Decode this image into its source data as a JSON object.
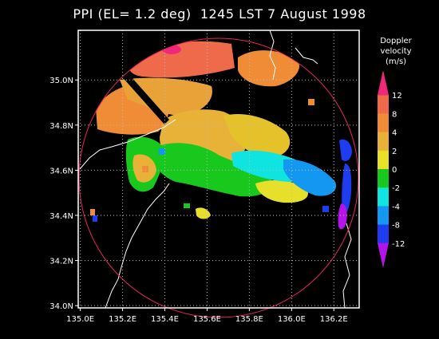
{
  "title": "PPI (EL= 1.2 deg)  1245 LST 7 August 1998",
  "colorbar": {
    "label_line1": "Doppler",
    "label_line2": "velocity",
    "label_line3": "(m/s)",
    "levels": [
      "12",
      "8",
      "4",
      "2",
      "0",
      "-2",
      "-4",
      "-8",
      "-12"
    ],
    "colors": [
      "#f0287a",
      "#ee6a4a",
      "#f18c36",
      "#e8b238",
      "#e6e02a",
      "#19c81c",
      "#10e4e0",
      "#1298f0",
      "#1e3cf0",
      "#b414ea"
    ]
  },
  "chart_data": {
    "type": "heatmap",
    "title": "PPI (EL= 1.2 deg)  1245 LST 7 August 1998",
    "xlabel": "",
    "ylabel": "",
    "x_ticks": [
      "135.0E",
      "135.2E",
      "135.4E",
      "135.6E",
      "135.8E",
      "136.0E",
      "136.2E"
    ],
    "y_ticks": [
      "35.0N",
      "34.8N",
      "34.6N",
      "34.4N",
      "34.2N",
      "34.0N"
    ],
    "xlim": [
      134.99,
      136.32
    ],
    "ylim": [
      33.99,
      35.22
    ],
    "grid": true,
    "colorbar_units": "m/s",
    "colorbar_levels": [
      12,
      8,
      4,
      2,
      0,
      -2,
      -4,
      -8,
      -12
    ]
  }
}
